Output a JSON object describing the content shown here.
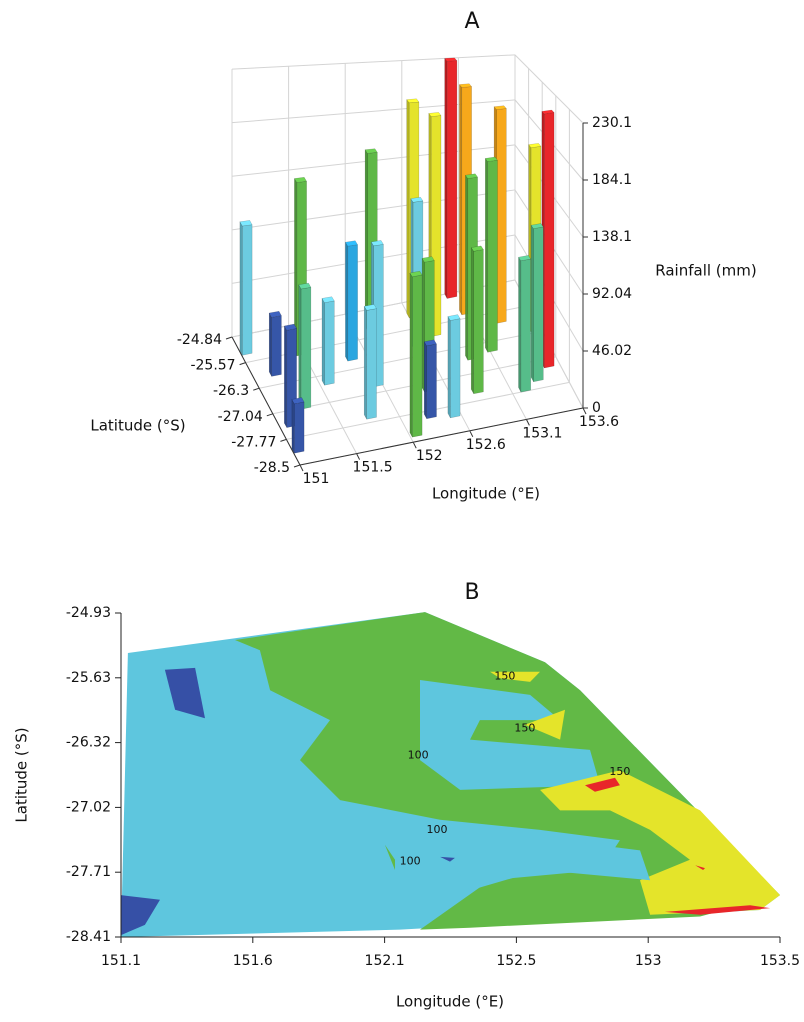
{
  "chart_data": [
    {
      "type": "bar3d",
      "title": "A",
      "xlabel": "Longitude (°E)",
      "ylabel": "Latitude (°S)",
      "zlabel": "Rainfall (mm)",
      "xlim": [
        151,
        153.6
      ],
      "ylim": [
        -28.5,
        -24.84
      ],
      "zlim": [
        0,
        230.1
      ],
      "xticks": [
        151,
        {
          "value": 151.52,
          "label": "151.5"
        },
        {
          "value": 152.04,
          "label": "152"
        },
        {
          "value": 152.56,
          "label": "152.6"
        },
        {
          "value": 153.08,
          "label": "153.1"
        },
        153.6
      ],
      "yticks": [
        -24.84,
        {
          "value": -25.572,
          "label": "-25.57"
        },
        {
          "value": -26.304,
          "label": "-26.3"
        },
        {
          "value": -27.036,
          "label": "-27.04"
        },
        {
          "value": -27.768,
          "label": "-27.77"
        },
        -28.5
      ],
      "zticks": [
        0,
        46.02,
        92.04,
        {
          "value": 138.06,
          "label": "138.1"
        },
        {
          "value": 184.08,
          "label": "184.1"
        },
        230.1
      ],
      "grid": true,
      "bars": {
        "x": [
          153.0,
          153.05,
          153.3,
          153.55,
          152.6,
          152.7,
          153.1,
          153.5,
          152.2,
          152.5,
          152.9,
          153.35,
          153.2,
          151.9,
          151.5,
          152.8,
          152.4,
          151.05,
          152.0,
          151.6,
          151.2,
          152.5,
          152.3,
          151.8,
          151.3,
          152.1,
          151.1,
          151.05
        ],
        "y": [
          -24.9,
          -25.4,
          -25.8,
          -26.2,
          -25.2,
          -25.8,
          -26.5,
          -27.2,
          -25.3,
          -26.0,
          -26.6,
          -27.5,
          -27.7,
          -26.0,
          -25.6,
          -27.5,
          -27.2,
          -25.3,
          -26.8,
          -26.5,
          -26.0,
          -28.0,
          -27.9,
          -27.6,
          -27.0,
          -28.3,
          -27.4,
          -28.1
        ],
        "values": [
          230,
          215,
          200,
          170,
          200,
          200,
          170,
          220,
          160,
          130,
          160,
          130,
          110,
          100,
          150,
          120,
          110,
          110,
          120,
          70,
          50,
          80,
          60,
          90,
          100,
          130,
          80,
          40
        ],
        "colors": [
          "#e8262a",
          "#f7a81b",
          "#f7a81b",
          "#e4e32b",
          "#e4e32b",
          "#e4e32b",
          "#5fb847",
          "#e8262a",
          "#5fb847",
          "#6ccbe0",
          "#5fb847",
          "#56bd8a",
          "#56bd8a",
          "#2aa6e0",
          "#5fb847",
          "#5fb847",
          "#5fb847",
          "#6ccbe0",
          "#6ccbe0",
          "#6ccbe0",
          "#3656a8",
          "#6ccbe0",
          "#3656a8",
          "#6ccbe0",
          "#56bd8a",
          "#5fb847",
          "#3656a8",
          "#3656a8"
        ]
      }
    },
    {
      "type": "contour",
      "title": "B",
      "xlabel": "Longitude (°E)",
      "ylabel": "Latitude (°S)",
      "xlim": [
        151.1,
        153.5
      ],
      "ylim": [
        -28.41,
        -24.93
      ],
      "xticks": [
        151.1,
        {
          "value": 151.58,
          "label": "151.6"
        },
        {
          "value": 152.06,
          "label": "152.1"
        },
        {
          "value": 152.54,
          "label": "152.5"
        },
        {
          "value": 153.02,
          "label": "153"
        },
        153.5
      ],
      "yticks": [
        -24.93,
        {
          "value": -25.626,
          "label": "-25.63"
        },
        {
          "value": -26.322,
          "label": "-26.32"
        },
        {
          "value": -27.018,
          "label": "-27.02"
        },
        {
          "value": -27.714,
          "label": "-27.71"
        },
        -28.41
      ],
      "regions": [
        {
          "color": "#5ec6de",
          "lon": [
            151.125,
            152.207,
            152.644,
            152.772,
            153.5,
            153.427,
            152.116,
            151.1
          ],
          "lat": [
            -25.36,
            -24.92,
            -25.46,
            -25.76,
            -27.96,
            -28.12,
            -28.33,
            -28.41
          ]
        },
        {
          "color": "#62b946",
          "lon": [
            151.515,
            152.207,
            152.644,
            152.772,
            153.5,
            153.209,
            152.371,
            152.189,
            152.444,
            152.845,
            152.917,
            152.626,
            152.262,
            151.898,
            151.752,
            151.861,
            151.643,
            151.606
          ],
          "lat": [
            -25.22,
            -24.92,
            -25.46,
            -25.76,
            -27.96,
            -28.19,
            -28.31,
            -28.33,
            -27.8,
            -27.69,
            -27.37,
            -27.26,
            -27.15,
            -26.94,
            -26.51,
            -26.08,
            -25.76,
            -25.33
          ]
        },
        {
          "color": "#5ec6de",
          "lon": [
            152.189,
            152.59,
            152.699,
            152.407,
            152.371,
            152.808,
            152.845,
            152.335,
            152.189
          ],
          "lat": [
            -25.65,
            -25.81,
            -26.08,
            -26.08,
            -26.29,
            -26.4,
            -26.78,
            -26.83,
            -26.51
          ]
        },
        {
          "color": "#e4e42a",
          "lon": [
            152.626,
            152.917,
            153.209,
            153.5,
            153.427,
            153.027,
            152.99,
            153.172,
            153.027,
            152.881,
            152.699
          ],
          "lat": [
            -26.83,
            -26.62,
            -27.05,
            -27.96,
            -28.12,
            -28.17,
            -27.8,
            -27.58,
            -27.26,
            -27.05,
            -27.05
          ]
        },
        {
          "color": "#5ec6de",
          "lon": [
            152.262,
            152.699,
            152.99,
            153.027,
            152.626,
            152.371
          ],
          "lat": [
            -27.42,
            -27.37,
            -27.48,
            -27.8,
            -27.69,
            -27.91
          ]
        },
        {
          "color": "#e4e42a",
          "lon": [
            152.444,
            152.626,
            152.59,
            152.48
          ],
          "lat": [
            -25.56,
            -25.56,
            -25.67,
            -25.63
          ]
        },
        {
          "color": "#e4e42a",
          "lon": [
            152.571,
            152.717,
            152.699
          ],
          "lat": [
            -26.13,
            -25.97,
            -26.29
          ]
        },
        {
          "color": "#e8262a",
          "lon": [
            152.79,
            152.899,
            152.917,
            152.826
          ],
          "lat": [
            -26.78,
            -26.7,
            -26.78,
            -26.85
          ]
        },
        {
          "color": "#e8262a",
          "lon": [
            153.081,
            153.391,
            153.464,
            153.209
          ],
          "lat": [
            -28.14,
            -28.07,
            -28.1,
            -28.17
          ]
        },
        {
          "color": "#e8262a",
          "lon": [
            153.191,
            153.227,
            153.22
          ],
          "lat": [
            -27.64,
            -27.67,
            -27.69
          ]
        },
        {
          "color": "#3650a6",
          "lon": [
            151.26,
            151.37,
            151.406,
            151.297
          ],
          "lat": [
            -25.54,
            -25.52,
            -26.06,
            -25.97
          ]
        },
        {
          "color": "#3650a6",
          "lon": [
            151.1,
            151.242,
            151.187,
            151.1
          ],
          "lat": [
            -27.96,
            -28.01,
            -28.28,
            -28.39
          ]
        },
        {
          "color": "#3650a6",
          "lon": [
            152.262,
            152.316,
            152.298
          ],
          "lat": [
            -27.55,
            -27.56,
            -27.6
          ]
        },
        {
          "color": "#62b946",
          "lon": [
            152.061,
            152.098,
            152.098
          ],
          "lat": [
            -27.42,
            -27.58,
            -27.69
          ]
        }
      ],
      "contour_labels": {
        "x": [
          152.498,
          152.571,
          152.917,
          152.182,
          152.251,
          152.153
        ],
        "y": [
          -25.61,
          -26.17,
          -26.64,
          -26.46,
          -27.26,
          -27.6
        ],
        "values": [
          150,
          150,
          150,
          100,
          100,
          100
        ]
      }
    }
  ]
}
